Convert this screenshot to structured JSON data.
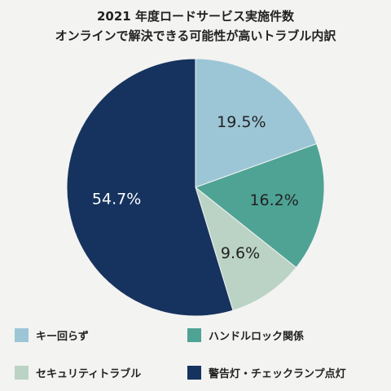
{
  "chart_data": {
    "type": "pie",
    "title_line1": "2021 年度ロードサービス実施件数",
    "title_line2": "オンラインで解決できる可能性が高いトラブル内訳",
    "slices": [
      {
        "label": "キー回らず",
        "value": 19.5,
        "value_label": "19.5%",
        "color": "#9cc6d6"
      },
      {
        "label": "ハンドルロック関係",
        "value": 16.2,
        "value_label": "16.2%",
        "color": "#4ea395"
      },
      {
        "label": "セキュリティトラブル",
        "value": 9.6,
        "value_label": "9.6%",
        "color": "#bad3c5"
      },
      {
        "label": "警告灯・チェックランプ点灯",
        "value": 54.7,
        "value_label": "54.7%",
        "color": "#16335f"
      }
    ],
    "label_colors": [
      "#222222",
      "#222222",
      "#222222",
      "#ffffff"
    ],
    "start": "12 o'clock",
    "direction": "clockwise",
    "legend_position": "bottom"
  }
}
